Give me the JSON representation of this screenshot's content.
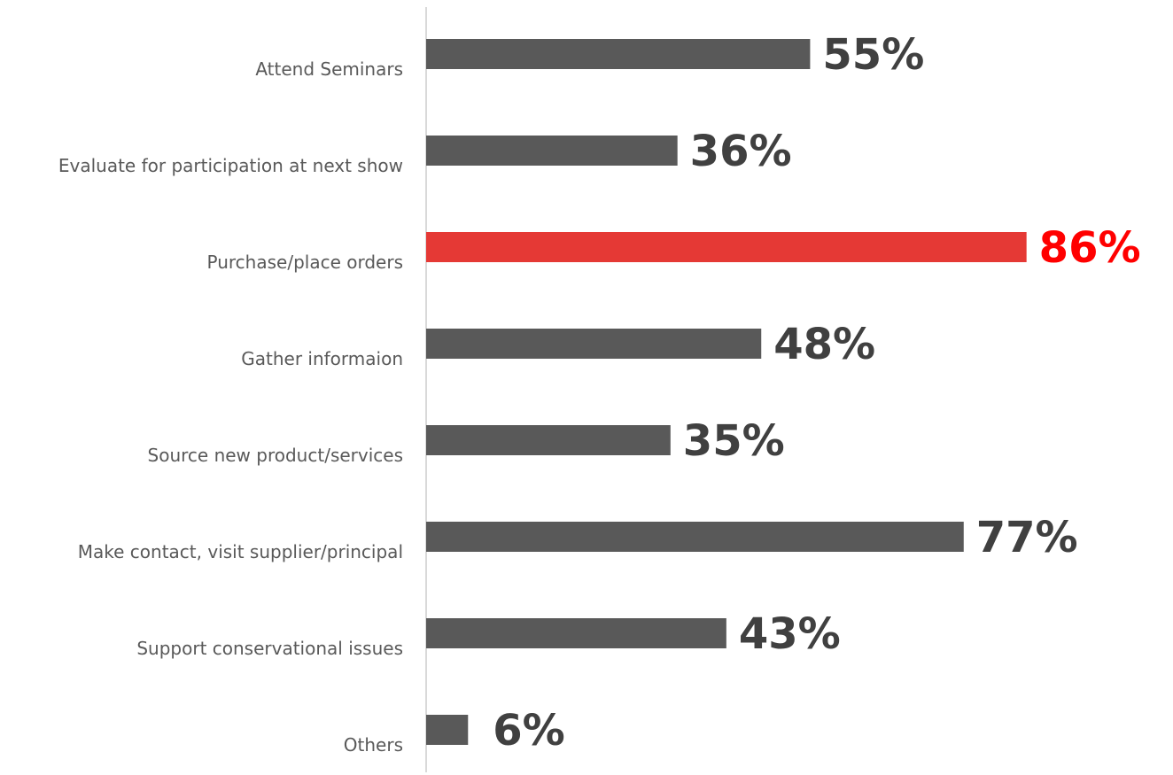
{
  "chart_data": {
    "type": "bar",
    "orientation": "horizontal",
    "categories": [
      "Attend Seminars",
      "Evaluate for participation at next show",
      "Purchase/place orders",
      "Gather informaion",
      "Source new product/services",
      "Make contact, visit supplier/principal",
      "Support conservational issues",
      "Others"
    ],
    "values": [
      55,
      36,
      86,
      48,
      35,
      77,
      43,
      6
    ],
    "value_labels": [
      "55%",
      "36%",
      "86%",
      "48%",
      "35%",
      "77%",
      "43%",
      "6%"
    ],
    "highlight_index": 2,
    "title": "",
    "xlabel": "",
    "ylabel": "",
    "xlim": [
      0,
      100
    ],
    "grid": false,
    "legend": "none",
    "colors": {
      "bar": "#595959",
      "highlight_bar": "#e53935",
      "value_label": "#404040",
      "highlight_value_label": "#ff0000",
      "category_label": "#595959",
      "axis_line": "#d9d9d9"
    }
  }
}
